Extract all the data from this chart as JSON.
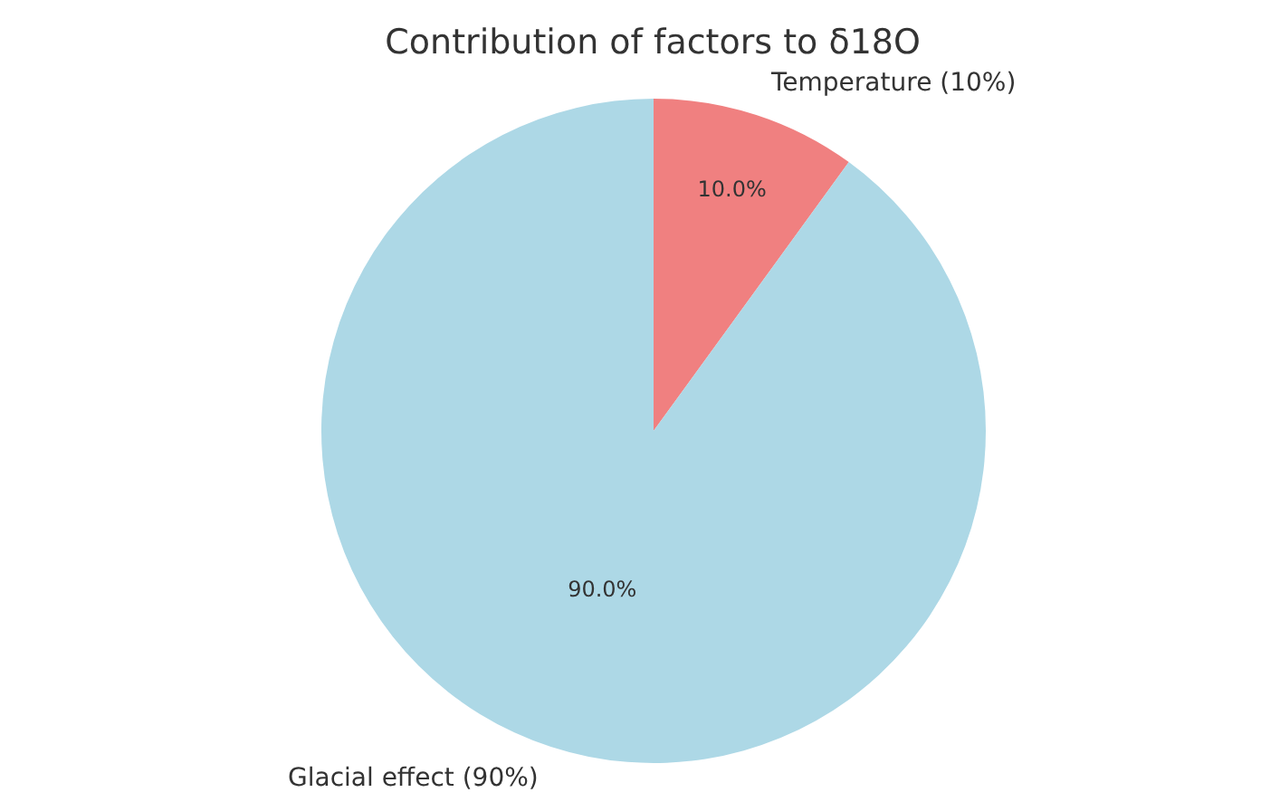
{
  "chart_data": {
    "type": "pie",
    "title": "Contribution of factors to δ18O",
    "categories": [
      "Temperature (10%)",
      "Glacial effect (90%)"
    ],
    "values": [
      10,
      90
    ],
    "colors": [
      "#f08080",
      "#add8e6"
    ],
    "value_labels": [
      "10.0%",
      "90.0%"
    ],
    "legend": false
  }
}
